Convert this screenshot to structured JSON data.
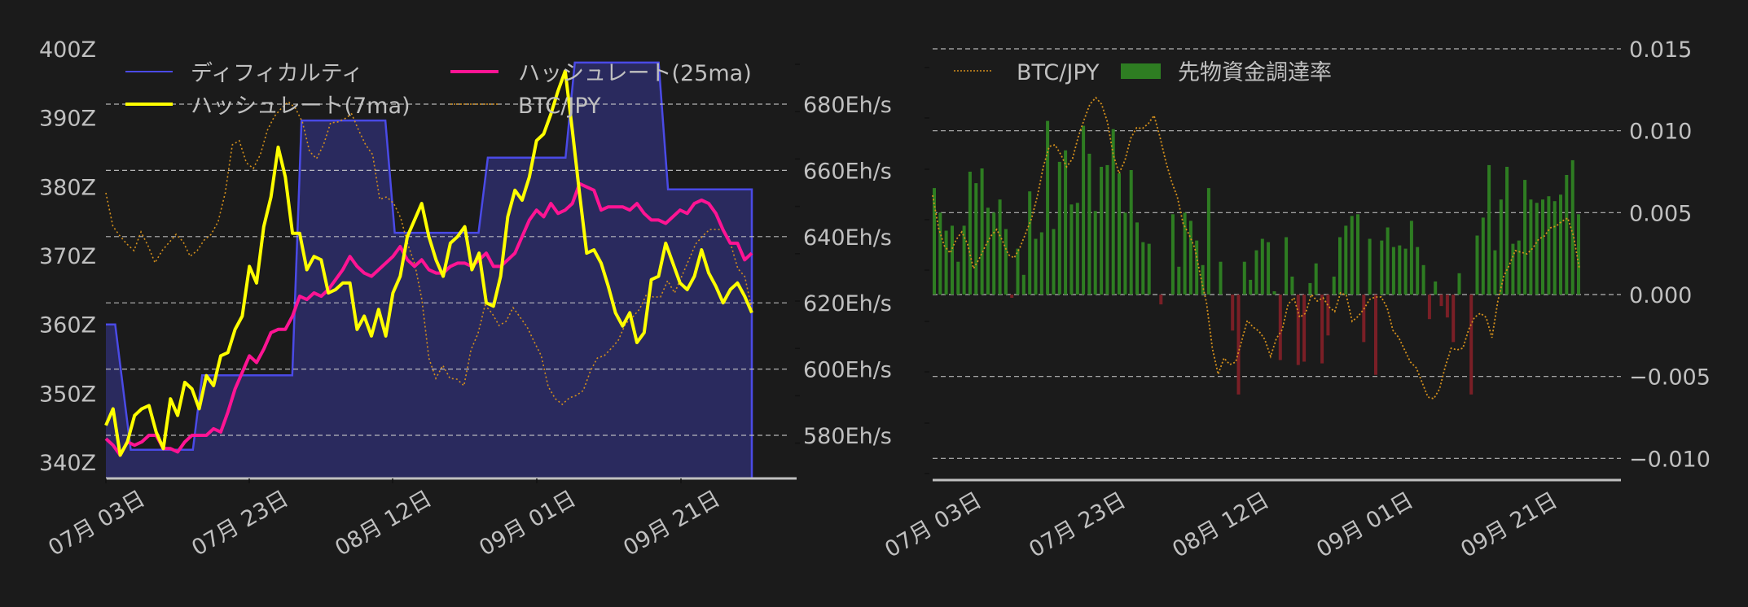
{
  "chart_data": [
    {
      "type": "line",
      "title": "",
      "xlabel": "",
      "ylabel_left": "",
      "ylabel_right": "",
      "left_axis": {
        "unit": "Z",
        "ticks": [
          "400Z",
          "390Z",
          "380Z",
          "370Z",
          "360Z",
          "350Z",
          "340Z"
        ],
        "range": [
          338,
          401
        ]
      },
      "right_axis": {
        "unit": "Eh/s",
        "ticks": [
          "680Eh/s",
          "660Eh/s",
          "640Eh/s",
          "620Eh/s",
          "600Eh/s",
          "580Eh/s"
        ],
        "range": [
          569,
          693
        ]
      },
      "x_ticks": [
        "07月 03日",
        "07月 23日",
        "08月 12日",
        "09月 01日",
        "09月 21日"
      ],
      "grid": true,
      "legend": {
        "position": "upper",
        "entries": [
          {
            "label": "ディフィカルティ",
            "color": "#4a4ae6",
            "style": "line"
          },
          {
            "label": "ハッシュレート(25ma)",
            "color": "#ff1493",
            "style": "line"
          },
          {
            "label": "ハッシュレート(7ma)",
            "color": "#ffff00",
            "style": "line"
          },
          {
            "label": "BTC/JPY",
            "color": "#d4901c",
            "style": "dotted"
          }
        ]
      },
      "series": [
        {
          "name": "ディフィカルティ",
          "axis": "left",
          "color": "#4a4ae6",
          "fill": "#2a2a5e",
          "step": true,
          "points": [
            [
              0,
              360
            ],
            [
              1.5,
              360
            ],
            [
              4,
              341.8
            ],
            [
              14,
              341.8
            ],
            [
              15.5,
              352.6
            ],
            [
              30,
              352.6
            ],
            [
              31.5,
              389.6
            ],
            [
              45,
              389.6
            ],
            [
              46.5,
              373.3
            ],
            [
              60,
              373.3
            ],
            [
              61.5,
              384.2
            ],
            [
              74,
              384.2
            ],
            [
              75.5,
              398
            ],
            [
              89,
              398
            ],
            [
              90.5,
              379.6
            ],
            [
              104,
              379.6
            ]
          ]
        },
        {
          "name": "ハッシュレート(7ma)",
          "axis": "right",
          "color": "#ffff00",
          "values": [
            583,
            588,
            574,
            578,
            586,
            588,
            589,
            581,
            576,
            591,
            586,
            596,
            594,
            588,
            598,
            595,
            604,
            605,
            612,
            616,
            631,
            626,
            643,
            652,
            667,
            658,
            641,
            641,
            630,
            634,
            633,
            623,
            624,
            626,
            626,
            612,
            616,
            610,
            618,
            610,
            623,
            628,
            640,
            645,
            650,
            640,
            633,
            628,
            638,
            640,
            643,
            630,
            635,
            620,
            619,
            628,
            646,
            654,
            651,
            658,
            669,
            671,
            677,
            684,
            690,
            672,
            653,
            635,
            636,
            632,
            625,
            617,
            613,
            617,
            608,
            611,
            627,
            628,
            638,
            632,
            626,
            624,
            628,
            636,
            629,
            625,
            620,
            624,
            626,
            622,
            617
          ],
          "values_note": "approximate daily 7-day MA hashrate, Eh/s"
        },
        {
          "name": "ハッシュレート(25ma)",
          "axis": "right",
          "color": "#ff1493",
          "values": [
            579,
            577,
            574,
            578,
            577,
            578,
            580,
            580,
            576,
            576,
            575,
            578,
            580,
            580,
            580,
            582,
            581,
            587,
            594,
            599,
            604,
            602,
            606,
            611,
            612,
            612,
            616,
            622,
            621,
            623,
            622,
            624,
            627,
            630,
            634,
            631,
            629,
            628,
            630,
            632,
            634,
            637,
            633,
            631,
            633,
            630,
            629,
            629,
            631,
            632,
            632,
            631,
            633,
            635,
            631,
            631,
            633,
            635,
            640,
            645,
            648,
            646,
            650,
            647,
            648,
            650,
            656,
            655,
            654,
            648,
            649,
            649,
            649,
            648,
            650,
            647,
            645,
            645,
            644,
            646,
            648,
            647,
            650,
            651,
            650,
            647,
            642,
            638,
            638,
            633,
            635
          ],
          "values_note": "approximate daily 25-day MA hashrate, Eh/s"
        },
        {
          "name": "BTC/JPY",
          "axis": "hidden",
          "color": "#d4901c",
          "style": "dotted",
          "y_pixels_note": "relative scale (no axis shown), values as chart pixel y",
          "values": [
            237,
            278,
            290,
            300,
            308,
            285,
            302,
            323,
            308,
            298,
            288,
            297,
            315,
            308,
            295,
            288,
            272,
            237,
            178,
            173,
            200,
            207,
            190,
            160,
            143,
            133,
            125,
            133,
            150,
            186,
            195,
            178,
            151,
            150,
            146,
            140,
            160,
            178,
            190,
            245,
            242,
            250,
            268,
            300,
            325,
            368,
            440,
            465,
            449,
            465,
            466,
            474,
            430,
            410,
            375,
            385,
            400,
            395,
            378,
            390,
            402,
            420,
            437,
            475,
            490,
            497,
            489,
            486,
            480,
            456,
            440,
            437,
            428,
            418,
            398,
            390,
            380,
            362,
            365,
            365,
            345,
            360,
            340,
            320,
            300,
            290,
            282,
            282,
            282,
            300,
            330,
            340,
            380
          ]
        }
      ]
    },
    {
      "type": "bar",
      "title": "",
      "xlabel": "",
      "ylabel": "",
      "right_axis": {
        "ticks": [
          "0.015",
          "0.010",
          "0.005",
          "0.000",
          "−0.005",
          "−0.010"
        ],
        "range": [
          -0.011,
          0.0155
        ]
      },
      "x_ticks": [
        "07月 03日",
        "07月 23日",
        "08月 12日",
        "09月 01日",
        "09月 21日"
      ],
      "grid": true,
      "legend": {
        "position": "upper left",
        "entries": [
          {
            "label": "BTC/JPY",
            "color": "#d4901c",
            "style": "dotted"
          },
          {
            "label": "先物資金調達率",
            "color": "#2e7d22",
            "style": "patch"
          }
        ]
      },
      "positive_color": "#2e7d22",
      "negative_color": "#7a1f26",
      "series": [
        {
          "name": "先物資金調達率",
          "values": [
            0.0065,
            0.005,
            0.0039,
            0.0042,
            0.002,
            0.0042,
            0.0075,
            0.0068,
            0.0077,
            0.0053,
            0.005,
            0.0058,
            0.004,
            -0.0002,
            0.0028,
            0.0012,
            0.0063,
            0.0034,
            0.0038,
            0.0106,
            0.004,
            0.0081,
            0.0088,
            0.0055,
            0.0056,
            0.0103,
            0.0086,
            0.0051,
            0.0078,
            0.0079,
            0.0101,
            0.0074,
            0.005,
            0.0076,
            0.0044,
            0.0032,
            0.0031,
            0,
            -0.0006,
            0,
            0.0049,
            0.0017,
            0.005,
            0.0045,
            0.0033,
            0.0018,
            0.0065,
            0,
            0.002,
            0,
            -0.0022,
            -0.0061,
            0.002,
            0.0009,
            0.0027,
            0.0034,
            0.0032,
            0.0002,
            -0.004,
            0.0035,
            0.0011,
            -0.0043,
            -0.0041,
            0.0007,
            0.0019,
            -0.0042,
            -0.0025,
            0.0011,
            0.0035,
            0.0042,
            0.0048,
            0.0049,
            -0.0029,
            0.0034,
            -0.0049,
            0.0033,
            0.0041,
            0.0029,
            0.003,
            0.0028,
            0.0045,
            0.0029,
            0.0018,
            -0.0015,
            0.0008,
            -0.0007,
            -0.0014,
            -0.0029,
            0.0013,
            0.0,
            -0.0061,
            0.0036,
            0.0047,
            0.0079,
            0.0027,
            0.0058,
            0.0078,
            0.0031,
            0.0033,
            0.007,
            0.0058,
            0.0056,
            0.0058,
            0.006,
            0.0057,
            0.0061,
            0.0073,
            0.0082,
            0.0049
          ]
        },
        {
          "name": "BTC/JPY",
          "style": "dotted",
          "color": "#d4901c",
          "y_pixels_note": "relative scale (no axis shown), values as chart pixel y",
          "values": [
            240,
            280,
            302,
            311,
            295,
            285,
            300,
            330,
            318,
            303,
            290,
            282,
            296,
            313,
            317,
            304,
            286,
            268,
            240,
            205,
            180,
            178,
            190,
            205,
            195,
            168,
            147,
            128,
            120,
            128,
            150,
            190,
            213,
            197,
            170,
            157,
            158,
            152,
            142,
            168,
            198,
            223,
            242,
            275,
            288,
            305,
            340,
            372,
            428,
            460,
            440,
            448,
            445,
            420,
            394,
            402,
            407,
            417,
            438,
            416,
            405,
            374,
            366,
            390,
            385,
            362,
            370,
            366,
            377,
            383,
            360,
            363,
            395,
            389,
            380,
            368,
            365,
            365,
            378,
            406,
            415,
            430,
            445,
            452,
            470,
            488,
            490,
            478,
            450,
            428,
            430,
            428,
            405,
            390,
            385,
            390,
            415,
            370,
            340,
            325,
            308,
            310,
            312,
            305,
            294,
            290,
            280,
            278,
            272,
            268,
            290,
            330
          ]
        }
      ]
    }
  ]
}
